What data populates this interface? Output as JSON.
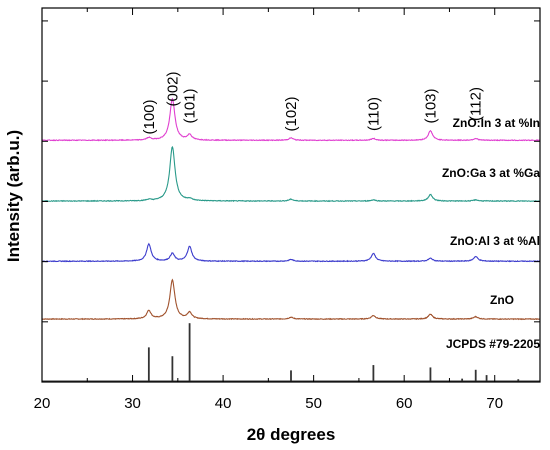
{
  "chart_data": {
    "type": "line",
    "xlabel": "2θ degrees",
    "ylabel": "Intensity (arb.u.)",
    "xlim": [
      20,
      75
    ],
    "x_ticks": [
      20,
      30,
      40,
      50,
      60,
      70
    ],
    "grid": false,
    "series": [
      {
        "name": "JCPDS #79-2205",
        "color": "#333333",
        "style": "sticks",
        "offset": 0,
        "peaks": [
          {
            "x": 31.8,
            "height": 0.57
          },
          {
            "x": 34.4,
            "height": 0.42
          },
          {
            "x": 36.3,
            "height": 0.98
          },
          {
            "x": 47.5,
            "height": 0.18
          },
          {
            "x": 56.6,
            "height": 0.27
          },
          {
            "x": 62.9,
            "height": 0.23
          },
          {
            "x": 66.4,
            "height": 0.04
          },
          {
            "x": 67.9,
            "height": 0.19
          },
          {
            "x": 69.1,
            "height": 0.1
          },
          {
            "x": 72.6,
            "height": 0.03
          }
        ]
      },
      {
        "name": "ZnO",
        "color": "#a0522d",
        "style": "curve",
        "offset": 1.05,
        "peaks": [
          {
            "x": 31.8,
            "height": 0.14
          },
          {
            "x": 34.4,
            "height": 0.66
          },
          {
            "x": 36.3,
            "height": 0.11
          },
          {
            "x": 47.5,
            "height": 0.03
          },
          {
            "x": 56.6,
            "height": 0.06
          },
          {
            "x": 62.9,
            "height": 0.08
          },
          {
            "x": 67.9,
            "height": 0.04
          }
        ]
      },
      {
        "name": "ZnO:Al 3 at %Al",
        "color": "#3b3bcc",
        "style": "curve",
        "offset": 2.03,
        "peaks": [
          {
            "x": 31.8,
            "height": 0.29
          },
          {
            "x": 34.4,
            "height": 0.13
          },
          {
            "x": 36.3,
            "height": 0.25
          },
          {
            "x": 47.5,
            "height": 0.03
          },
          {
            "x": 56.6,
            "height": 0.13
          },
          {
            "x": 62.9,
            "height": 0.05
          },
          {
            "x": 67.9,
            "height": 0.08
          }
        ]
      },
      {
        "name": "ZnO:Ga 3 at %Ga",
        "color": "#2a9a8a",
        "style": "curve",
        "offset": 3.05,
        "peaks": [
          {
            "x": 31.8,
            "height": 0.02
          },
          {
            "x": 34.4,
            "height": 0.92
          },
          {
            "x": 36.3,
            "height": 0.03
          },
          {
            "x": 47.5,
            "height": 0.03
          },
          {
            "x": 56.6,
            "height": 0.02
          },
          {
            "x": 62.9,
            "height": 0.11
          },
          {
            "x": 67.9,
            "height": 0.02
          }
        ]
      },
      {
        "name": "ZnO:In 3 at %In",
        "color": "#e040d0",
        "style": "curve",
        "offset": 4.08,
        "peaks": [
          {
            "x": 31.8,
            "height": 0.04
          },
          {
            "x": 34.4,
            "height": 0.7
          },
          {
            "x": 36.3,
            "height": 0.09
          },
          {
            "x": 47.5,
            "height": 0.04
          },
          {
            "x": 56.6,
            "height": 0.03
          },
          {
            "x": 62.9,
            "height": 0.16
          },
          {
            "x": 67.9,
            "height": 0.03
          }
        ]
      }
    ],
    "annotations": [
      {
        "text": "(100)",
        "x": 31.8
      },
      {
        "text": "(002)",
        "x": 34.4
      },
      {
        "text": "(101)",
        "x": 36.3
      },
      {
        "text": "(102)",
        "x": 47.5
      },
      {
        "text": "(110)",
        "x": 56.6
      },
      {
        "text": "(103)",
        "x": 62.9
      },
      {
        "text": "(112)",
        "x": 67.9
      }
    ]
  }
}
